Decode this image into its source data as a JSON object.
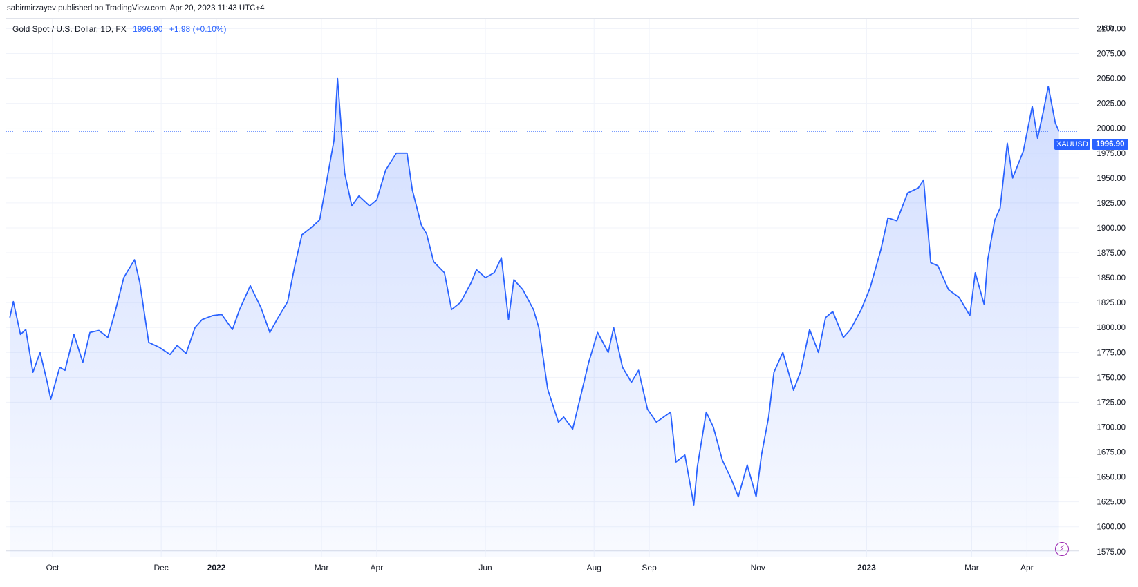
{
  "header": {
    "published_by": "sabirmirzayev published on TradingView.com, Apr 20, 2023 11:43 UTC+4"
  },
  "legend": {
    "symbol": "Gold Spot / U.S. Dollar, 1D, FX",
    "last_value": "1996.90",
    "change": "+1.98 (+0.10%)"
  },
  "axis": {
    "currency": "USD",
    "last_price_tag": "1996.90",
    "ticker_tag": "XAUUSD"
  },
  "icons": {
    "bolt": "lightning-bolt-icon"
  },
  "colors": {
    "line": "#2962ff",
    "accent": "#2962ff",
    "grid": "#f0f3fa",
    "bolt": "#9c27b0"
  },
  "chart_data": {
    "type": "area",
    "ylabel": "USD",
    "ylim": [
      1570,
      2110
    ],
    "yticks": [
      1575,
      1600,
      1625,
      1650,
      1675,
      1700,
      1725,
      1750,
      1775,
      1800,
      1825,
      1850,
      1875,
      1900,
      1925,
      1950,
      1975,
      2000,
      2025,
      2050,
      2075,
      2100
    ],
    "xlim": [
      "2021-09-05",
      "2023-04-30"
    ],
    "xticks": [
      {
        "date": "2021-10-01",
        "label": "Oct"
      },
      {
        "date": "2021-12-01",
        "label": "Dec"
      },
      {
        "date": "2022-01-01",
        "label": "2022"
      },
      {
        "date": "2022-03-01",
        "label": "Mar"
      },
      {
        "date": "2022-04-01",
        "label": "Apr"
      },
      {
        "date": "2022-06-01",
        "label": "Jun"
      },
      {
        "date": "2022-08-01",
        "label": "Aug"
      },
      {
        "date": "2022-09-01",
        "label": "Sep"
      },
      {
        "date": "2022-11-01",
        "label": "Nov"
      },
      {
        "date": "2023-01-01",
        "label": "2023"
      },
      {
        "date": "2023-03-01",
        "label": "Mar"
      },
      {
        "date": "2023-04-01",
        "label": "Apr"
      }
    ],
    "last_price": 1996.9,
    "grid": true,
    "series": [
      {
        "x": [
          "2021-09-07",
          "2021-09-09",
          "2021-09-13",
          "2021-09-16",
          "2021-09-20",
          "2021-09-24",
          "2021-09-28",
          "2021-09-30",
          "2021-10-05",
          "2021-10-08",
          "2021-10-13",
          "2021-10-18",
          "2021-10-22",
          "2021-10-27",
          "2021-11-01",
          "2021-11-05",
          "2021-11-10",
          "2021-11-16",
          "2021-11-19",
          "2021-11-24",
          "2021-11-30",
          "2021-12-06",
          "2021-12-10",
          "2021-12-15",
          "2021-12-20",
          "2021-12-24",
          "2021-12-30",
          "2022-01-04",
          "2022-01-10",
          "2022-01-14",
          "2022-01-20",
          "2022-01-26",
          "2022-01-31",
          "2022-02-04",
          "2022-02-10",
          "2022-02-14",
          "2022-02-18",
          "2022-02-23",
          "2022-02-28",
          "2022-03-02",
          "2022-03-08",
          "2022-03-10",
          "2022-03-14",
          "2022-03-18",
          "2022-03-22",
          "2022-03-28",
          "2022-04-01",
          "2022-04-06",
          "2022-04-12",
          "2022-04-18",
          "2022-04-21",
          "2022-04-26",
          "2022-04-29",
          "2022-05-03",
          "2022-05-09",
          "2022-05-13",
          "2022-05-18",
          "2022-05-24",
          "2022-05-27",
          "2022-06-01",
          "2022-06-06",
          "2022-06-10",
          "2022-06-14",
          "2022-06-17",
          "2022-06-22",
          "2022-06-28",
          "2022-07-01",
          "2022-07-06",
          "2022-07-12",
          "2022-07-15",
          "2022-07-20",
          "2022-07-25",
          "2022-07-29",
          "2022-08-03",
          "2022-08-09",
          "2022-08-12",
          "2022-08-17",
          "2022-08-22",
          "2022-08-26",
          "2022-08-31",
          "2022-09-05",
          "2022-09-09",
          "2022-09-13",
          "2022-09-16",
          "2022-09-21",
          "2022-09-26",
          "2022-09-28",
          "2022-10-03",
          "2022-10-07",
          "2022-10-12",
          "2022-10-17",
          "2022-10-21",
          "2022-10-26",
          "2022-10-31",
          "2022-11-03",
          "2022-11-07",
          "2022-11-10",
          "2022-11-15",
          "2022-11-21",
          "2022-11-25",
          "2022-11-30",
          "2022-12-05",
          "2022-12-09",
          "2022-12-13",
          "2022-12-19",
          "2022-12-23",
          "2022-12-29",
          "2023-01-03",
          "2023-01-09",
          "2023-01-13",
          "2023-01-18",
          "2023-01-24",
          "2023-01-30",
          "2023-02-02",
          "2023-02-06",
          "2023-02-10",
          "2023-02-16",
          "2023-02-22",
          "2023-02-28",
          "2023-03-03",
          "2023-03-08",
          "2023-03-10",
          "2023-03-14",
          "2023-03-17",
          "2023-03-21",
          "2023-03-24",
          "2023-03-30",
          "2023-04-04",
          "2023-04-07",
          "2023-04-10",
          "2023-04-13",
          "2023-04-17",
          "2023-04-19"
        ],
        "values": [
          1810,
          1826,
          1793,
          1798,
          1755,
          1775,
          1745,
          1728,
          1760,
          1757,
          1793,
          1765,
          1795,
          1797,
          1790,
          1815,
          1850,
          1868,
          1845,
          1785,
          1780,
          1773,
          1782,
          1774,
          1800,
          1808,
          1812,
          1813,
          1798,
          1818,
          1842,
          1820,
          1795,
          1808,
          1826,
          1862,
          1893,
          1900,
          1908,
          1928,
          1988,
          2050,
          1955,
          1922,
          1932,
          1922,
          1928,
          1958,
          1975,
          1975,
          1938,
          1903,
          1894,
          1866,
          1855,
          1818,
          1825,
          1845,
          1858,
          1850,
          1855,
          1870,
          1808,
          1848,
          1838,
          1818,
          1800,
          1738,
          1705,
          1710,
          1698,
          1735,
          1765,
          1795,
          1775,
          1800,
          1760,
          1745,
          1757,
          1718,
          1705,
          1710,
          1715,
          1665,
          1672,
          1622,
          1660,
          1715,
          1700,
          1667,
          1648,
          1630,
          1662,
          1630,
          1672,
          1710,
          1755,
          1775,
          1737,
          1756,
          1798,
          1775,
          1810,
          1816,
          1790,
          1798,
          1818,
          1840,
          1878,
          1910,
          1907,
          1935,
          1940,
          1948,
          1865,
          1862,
          1838,
          1830,
          1812,
          1855,
          1823,
          1868,
          1908,
          1920,
          1985,
          1950,
          1977,
          2022,
          1990,
          2015,
          2042,
          2005,
          1996.9
        ]
      }
    ]
  }
}
